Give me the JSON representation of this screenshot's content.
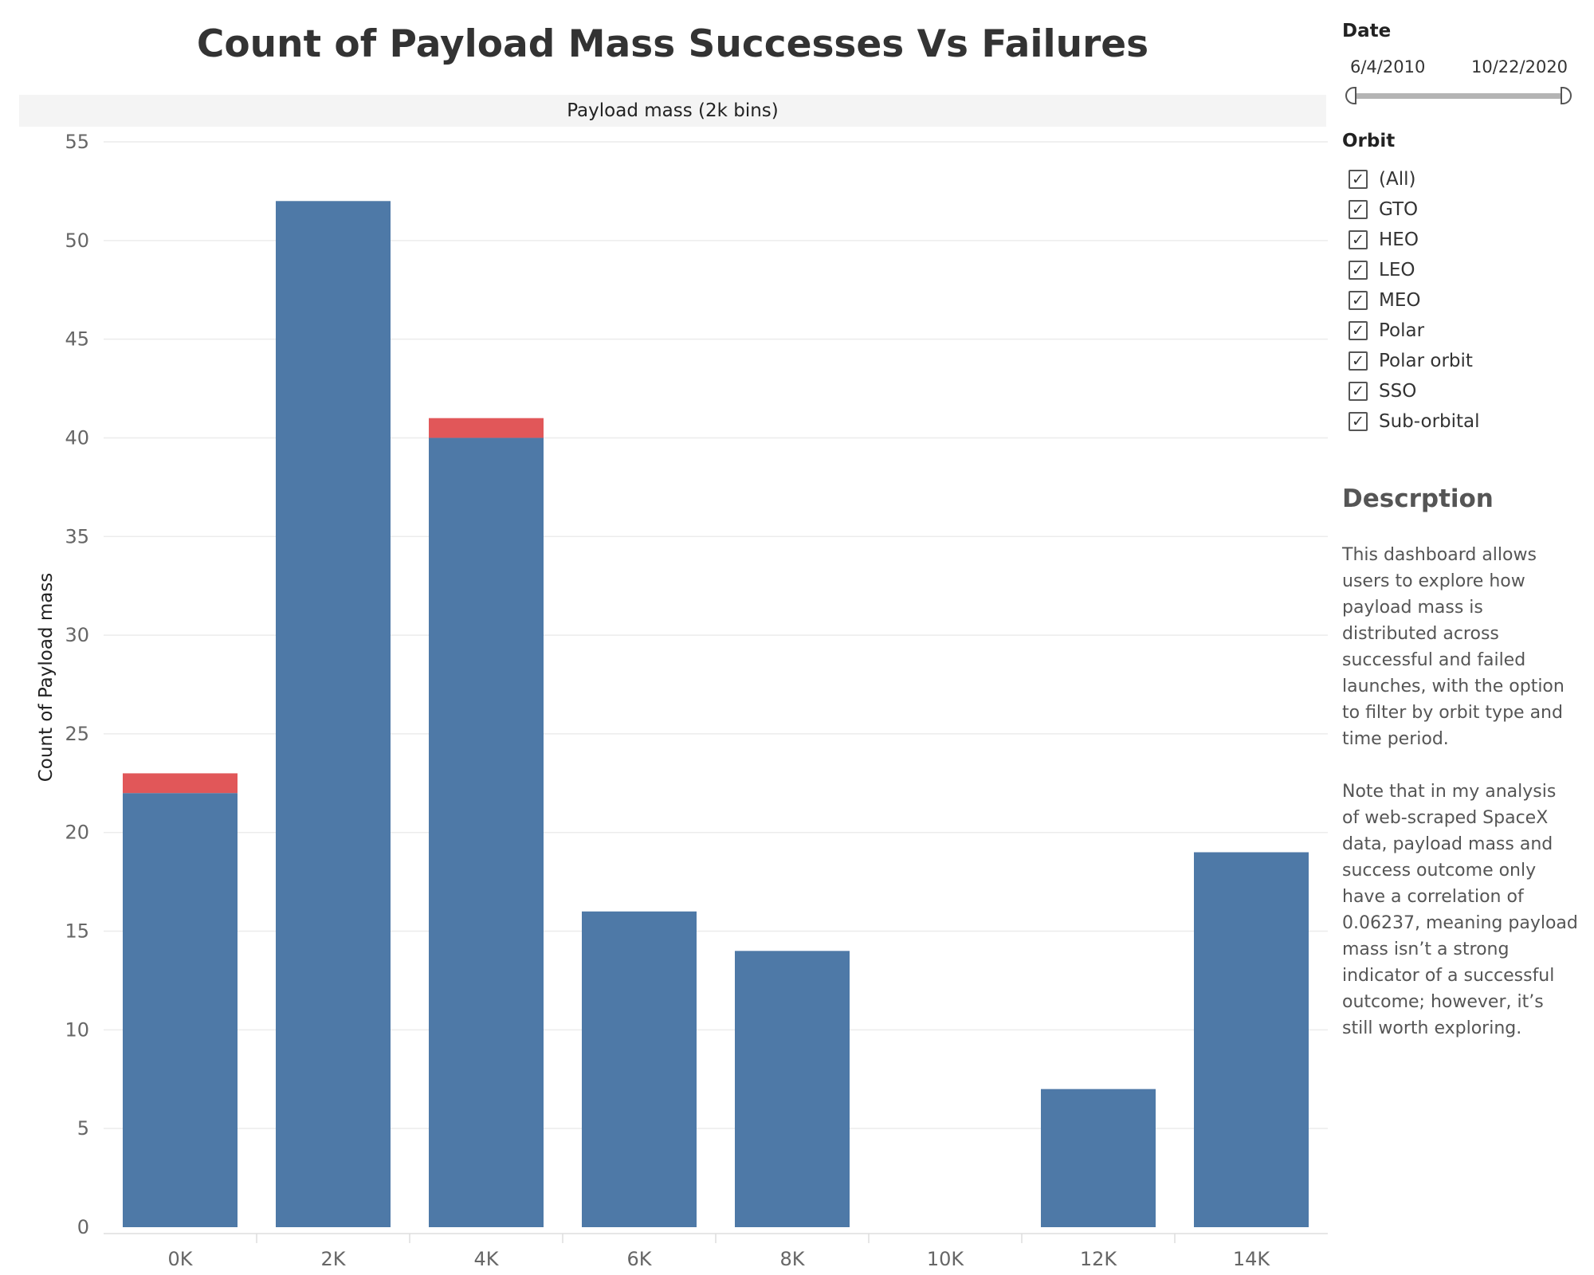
{
  "title": "Count of Payload Mass Successes Vs Failures",
  "facet_header": "Payload mass (2k bins)",
  "chart_data": {
    "type": "bar",
    "stacked": true,
    "title": "Count of Payload Mass Successes Vs Failures",
    "xlabel": "Payload mass (2k bins)",
    "ylabel": "Count of Payload mass",
    "categories": [
      "0K",
      "2K",
      "4K",
      "6K",
      "8K",
      "10K",
      "12K",
      "14K"
    ],
    "series": [
      {
        "values": [
          22,
          52,
          40,
          16,
          14,
          0,
          7,
          19
        ],
        "color": "#4e79a7"
      },
      {
        "values": [
          1,
          0,
          1,
          0,
          0,
          0,
          0,
          0
        ],
        "color": "#e15759"
      }
    ],
    "ylim": [
      0,
      55
    ],
    "yticks": [
      0,
      5,
      10,
      15,
      20,
      25,
      30,
      35,
      40,
      45,
      50,
      55
    ],
    "grid": true
  },
  "filters": {
    "date": {
      "title": "Date",
      "min": "6/4/2010",
      "max": "10/22/2020"
    },
    "orbit": {
      "title": "Orbit",
      "check_glyph": "✓",
      "items": [
        "(All)",
        "GTO",
        "HEO",
        "LEO",
        "MEO",
        "Polar",
        "Polar orbit",
        "SSO",
        "Sub-orbital"
      ]
    }
  },
  "description": {
    "title": "Descrption",
    "paragraphs": [
      "This dashboard allows users to explore how payload mass is distributed across successful and failed launches, with the option to filter by orbit type and time period.",
      "Note that in my analysis of web-scraped SpaceX data, payload mass and success outcome only have a correlation of 0.06237, meaning payload mass isn’t a strong indicator of a successful outcome; however, it’s still worth exploring."
    ]
  },
  "colors": {
    "success": "#4e79a7",
    "failure": "#e15759",
    "gridline": "#ececec",
    "axis_text": "#666666"
  }
}
